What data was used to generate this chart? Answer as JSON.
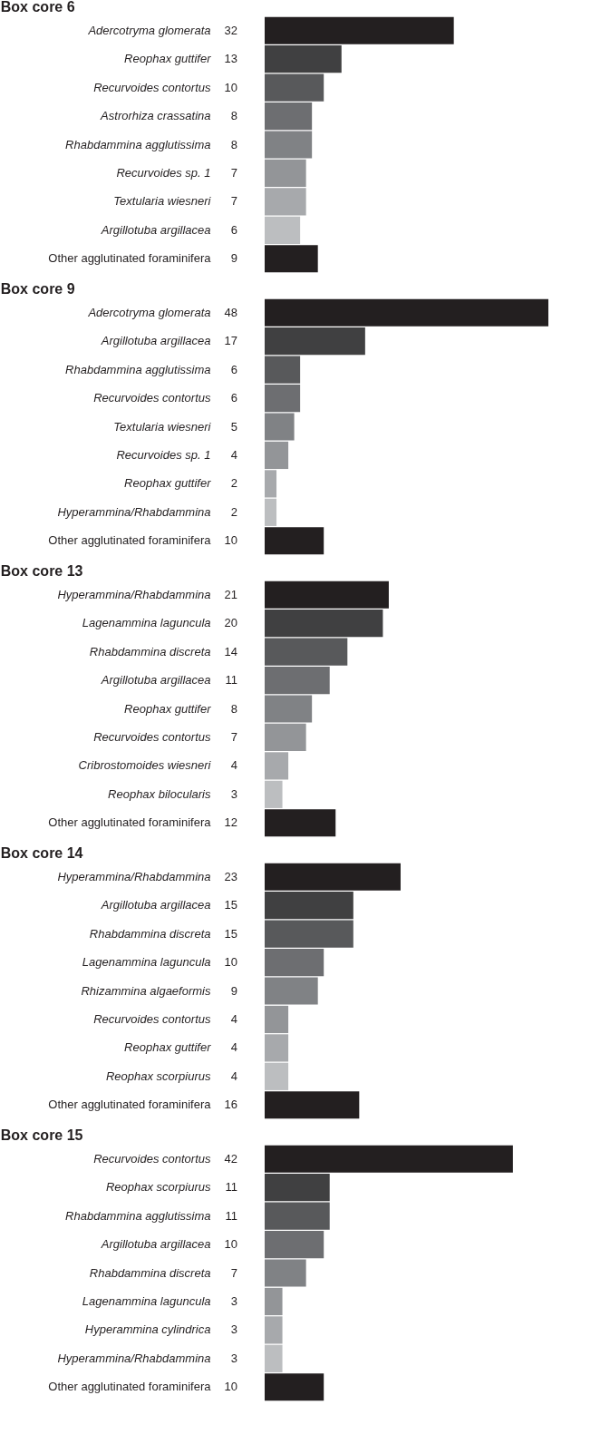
{
  "chart_data": [
    {
      "type": "bar",
      "orientation": "horizontal",
      "title": "Box core 6",
      "data_labels": true,
      "categories": [
        "Adercotryma glomerata",
        "Reophax guttifer",
        "Recurvoides contortus",
        "Astrorhiza crassatina",
        "Rhabdammina agglutissima",
        "Recurvoides sp. 1",
        "Textularia wiesneri",
        "Argillotuba argillacea",
        "Other agglutinated foraminifera"
      ],
      "values": [
        32,
        13,
        10,
        8,
        8,
        7,
        7,
        6,
        9
      ],
      "colors": [
        "#231f20",
        "#404041",
        "#58595b",
        "#6d6e71",
        "#808285",
        "#939598",
        "#a7a9ac",
        "#bcbec0",
        "#231f20"
      ]
    },
    {
      "type": "bar",
      "orientation": "horizontal",
      "title": "Box core 9",
      "data_labels": true,
      "categories": [
        "Adercotryma glomerata",
        "Argillotuba argillacea",
        "Rhabdammina agglutissima",
        "Recurvoides contortus",
        "Textularia wiesneri",
        "Recurvoides sp. 1",
        "Reophax guttifer",
        "Hyperammina/Rhabdammina",
        "Other agglutinated foraminifera"
      ],
      "values": [
        48,
        17,
        6,
        6,
        5,
        4,
        2,
        2,
        10
      ],
      "colors": [
        "#231f20",
        "#404041",
        "#58595b",
        "#6d6e71",
        "#808285",
        "#939598",
        "#a7a9ac",
        "#bcbec0",
        "#231f20"
      ]
    },
    {
      "type": "bar",
      "orientation": "horizontal",
      "title": "Box core 13",
      "data_labels": true,
      "categories": [
        "Hyperammina/Rhabdammina",
        "Lagenammina laguncula",
        "Rhabdammina discreta",
        "Argillotuba argillacea",
        "Reophax guttifer",
        "Recurvoides contortus",
        "Cribrostomoides wiesneri",
        "Reophax bilocularis",
        "Other agglutinated foraminifera"
      ],
      "values": [
        21,
        20,
        14,
        11,
        8,
        7,
        4,
        3,
        12
      ],
      "colors": [
        "#231f20",
        "#404041",
        "#58595b",
        "#6d6e71",
        "#808285",
        "#939598",
        "#a7a9ac",
        "#bcbec0",
        "#231f20"
      ]
    },
    {
      "type": "bar",
      "orientation": "horizontal",
      "title": "Box core 14",
      "data_labels": true,
      "categories": [
        "Hyperammina/Rhabdammina",
        "Argillotuba argillacea",
        "Rhabdammina discreta",
        "Lagenammina laguncula",
        "Rhizammina algaeformis",
        "Recurvoides contortus",
        "Reophax guttifer",
        "Reophax scorpiurus",
        "Other agglutinated foraminifera"
      ],
      "values": [
        23,
        15,
        15,
        10,
        9,
        4,
        4,
        4,
        16
      ],
      "colors": [
        "#231f20",
        "#404041",
        "#58595b",
        "#6d6e71",
        "#808285",
        "#939598",
        "#a7a9ac",
        "#bcbec0",
        "#231f20"
      ]
    },
    {
      "type": "bar",
      "orientation": "horizontal",
      "title": "Box core 15",
      "data_labels": true,
      "categories": [
        "Recurvoides contortus",
        "Reophax scorpiurus",
        "Rhabdammina agglutissima",
        "Argillotuba argillacea",
        "Rhabdammina discreta",
        "Lagenammina laguncula",
        "Hyperammina cylindrica",
        "Hyperammina/Rhabdammina",
        "Other agglutinated foraminifera"
      ],
      "values": [
        42,
        11,
        11,
        10,
        7,
        3,
        3,
        3,
        10
      ],
      "colors": [
        "#231f20",
        "#404041",
        "#58595b",
        "#6d6e71",
        "#808285",
        "#939598",
        "#a7a9ac",
        "#bcbec0",
        "#231f20"
      ]
    }
  ]
}
